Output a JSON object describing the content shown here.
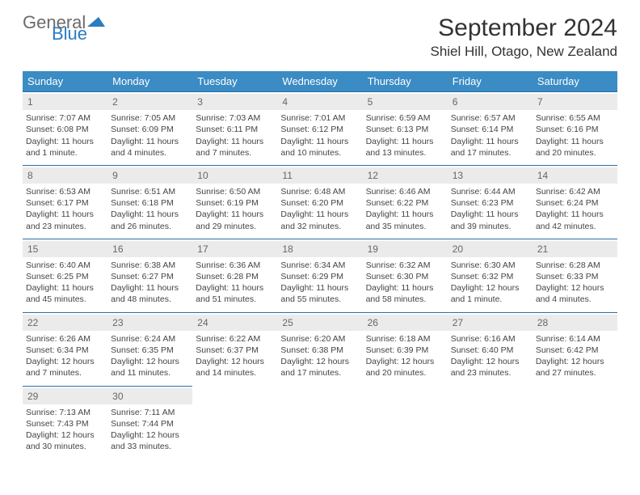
{
  "logo": {
    "part1": "General",
    "part2": "Blue"
  },
  "title": "September 2024",
  "location": "Shiel Hill, Otago, New Zealand",
  "colors": {
    "header_bg": "#3b8bc4",
    "header_text": "#ffffff",
    "cell_border": "#2a6ea3",
    "daynum_bg": "#ebebeb",
    "text": "#444444",
    "logo_gray": "#6b6b6b",
    "logo_blue": "#2a7bbf"
  },
  "dow": [
    "Sunday",
    "Monday",
    "Tuesday",
    "Wednesday",
    "Thursday",
    "Friday",
    "Saturday"
  ],
  "days": [
    {
      "n": "1",
      "sr": "7:07 AM",
      "ss": "6:08 PM",
      "dl": "11 hours and 1 minute."
    },
    {
      "n": "2",
      "sr": "7:05 AM",
      "ss": "6:09 PM",
      "dl": "11 hours and 4 minutes."
    },
    {
      "n": "3",
      "sr": "7:03 AM",
      "ss": "6:11 PM",
      "dl": "11 hours and 7 minutes."
    },
    {
      "n": "4",
      "sr": "7:01 AM",
      "ss": "6:12 PM",
      "dl": "11 hours and 10 minutes."
    },
    {
      "n": "5",
      "sr": "6:59 AM",
      "ss": "6:13 PM",
      "dl": "11 hours and 13 minutes."
    },
    {
      "n": "6",
      "sr": "6:57 AM",
      "ss": "6:14 PM",
      "dl": "11 hours and 17 minutes."
    },
    {
      "n": "7",
      "sr": "6:55 AM",
      "ss": "6:16 PM",
      "dl": "11 hours and 20 minutes."
    },
    {
      "n": "8",
      "sr": "6:53 AM",
      "ss": "6:17 PM",
      "dl": "11 hours and 23 minutes."
    },
    {
      "n": "9",
      "sr": "6:51 AM",
      "ss": "6:18 PM",
      "dl": "11 hours and 26 minutes."
    },
    {
      "n": "10",
      "sr": "6:50 AM",
      "ss": "6:19 PM",
      "dl": "11 hours and 29 minutes."
    },
    {
      "n": "11",
      "sr": "6:48 AM",
      "ss": "6:20 PM",
      "dl": "11 hours and 32 minutes."
    },
    {
      "n": "12",
      "sr": "6:46 AM",
      "ss": "6:22 PM",
      "dl": "11 hours and 35 minutes."
    },
    {
      "n": "13",
      "sr": "6:44 AM",
      "ss": "6:23 PM",
      "dl": "11 hours and 39 minutes."
    },
    {
      "n": "14",
      "sr": "6:42 AM",
      "ss": "6:24 PM",
      "dl": "11 hours and 42 minutes."
    },
    {
      "n": "15",
      "sr": "6:40 AM",
      "ss": "6:25 PM",
      "dl": "11 hours and 45 minutes."
    },
    {
      "n": "16",
      "sr": "6:38 AM",
      "ss": "6:27 PM",
      "dl": "11 hours and 48 minutes."
    },
    {
      "n": "17",
      "sr": "6:36 AM",
      "ss": "6:28 PM",
      "dl": "11 hours and 51 minutes."
    },
    {
      "n": "18",
      "sr": "6:34 AM",
      "ss": "6:29 PM",
      "dl": "11 hours and 55 minutes."
    },
    {
      "n": "19",
      "sr": "6:32 AM",
      "ss": "6:30 PM",
      "dl": "11 hours and 58 minutes."
    },
    {
      "n": "20",
      "sr": "6:30 AM",
      "ss": "6:32 PM",
      "dl": "12 hours and 1 minute."
    },
    {
      "n": "21",
      "sr": "6:28 AM",
      "ss": "6:33 PM",
      "dl": "12 hours and 4 minutes."
    },
    {
      "n": "22",
      "sr": "6:26 AM",
      "ss": "6:34 PM",
      "dl": "12 hours and 7 minutes."
    },
    {
      "n": "23",
      "sr": "6:24 AM",
      "ss": "6:35 PM",
      "dl": "12 hours and 11 minutes."
    },
    {
      "n": "24",
      "sr": "6:22 AM",
      "ss": "6:37 PM",
      "dl": "12 hours and 14 minutes."
    },
    {
      "n": "25",
      "sr": "6:20 AM",
      "ss": "6:38 PM",
      "dl": "12 hours and 17 minutes."
    },
    {
      "n": "26",
      "sr": "6:18 AM",
      "ss": "6:39 PM",
      "dl": "12 hours and 20 minutes."
    },
    {
      "n": "27",
      "sr": "6:16 AM",
      "ss": "6:40 PM",
      "dl": "12 hours and 23 minutes."
    },
    {
      "n": "28",
      "sr": "6:14 AM",
      "ss": "6:42 PM",
      "dl": "12 hours and 27 minutes."
    },
    {
      "n": "29",
      "sr": "7:13 AM",
      "ss": "7:43 PM",
      "dl": "12 hours and 30 minutes."
    },
    {
      "n": "30",
      "sr": "7:11 AM",
      "ss": "7:44 PM",
      "dl": "12 hours and 33 minutes."
    }
  ],
  "labels": {
    "sunrise": "Sunrise: ",
    "sunset": "Sunset: ",
    "daylight": "Daylight: "
  },
  "layout": {
    "start_offset": 0,
    "total_cells": 35
  }
}
